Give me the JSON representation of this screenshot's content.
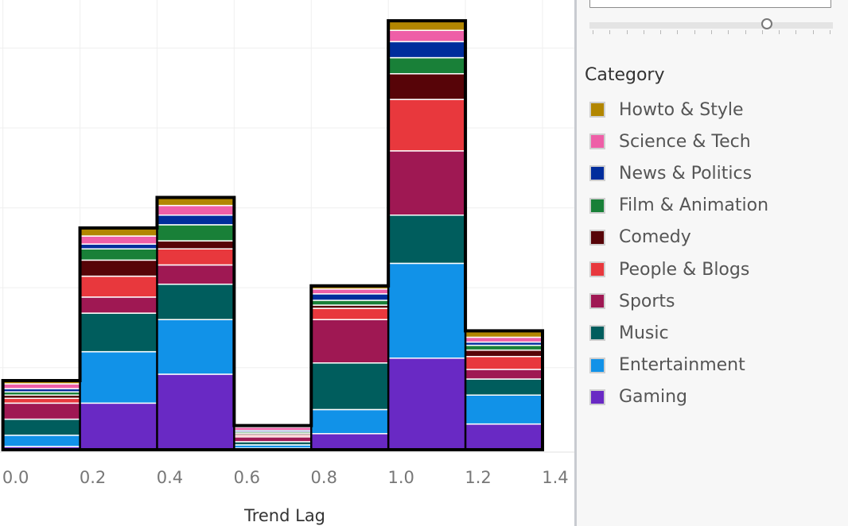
{
  "chart_data": {
    "type": "bar",
    "stacked": true,
    "xlabel": "Trend Lag",
    "ylabel": "",
    "x_ticks": [
      "0.0",
      "0.2",
      "0.4",
      "0.6",
      "0.8",
      "1.0",
      "1.2",
      "1.4"
    ],
    "bins": [
      {
        "from": 0.0,
        "to": 0.2
      },
      {
        "from": 0.2,
        "to": 0.4
      },
      {
        "from": 0.4,
        "to": 0.6
      },
      {
        "from": 0.6,
        "to": 0.8
      },
      {
        "from": 0.8,
        "to": 1.0
      },
      {
        "from": 1.0,
        "to": 1.2
      },
      {
        "from": 1.2,
        "to": 1.4
      }
    ],
    "ylim": [
      0,
      135
    ],
    "grid": true,
    "legend_position": "right",
    "series": [
      {
        "name": "Gaming",
        "color": "#6929c4",
        "values": [
          1,
          14.5,
          23.5,
          0.5,
          5,
          28.5,
          8
        ]
      },
      {
        "name": "Entertainment",
        "color": "#1192e8",
        "values": [
          3.5,
          16,
          17,
          1,
          7.5,
          29.5,
          9
        ]
      },
      {
        "name": "Music",
        "color": "#005d5d",
        "values": [
          5,
          12,
          11,
          1,
          14.5,
          15,
          5
        ]
      },
      {
        "name": "Sports",
        "color": "#9f1853",
        "values": [
          5,
          5,
          6,
          1.5,
          13.5,
          20,
          3
        ]
      },
      {
        "name": "People & Blogs",
        "color": "#e8383d",
        "values": [
          1.5,
          6.5,
          5,
          0.5,
          3.5,
          16,
          4
        ]
      },
      {
        "name": "Comedy",
        "color": "#570408",
        "values": [
          1,
          5,
          2.5,
          0.5,
          1,
          8,
          2
        ]
      },
      {
        "name": "Film & Animation",
        "color": "#198038",
        "values": [
          1,
          3.5,
          5,
          0.5,
          1.5,
          5,
          1.5
        ]
      },
      {
        "name": "News & Politics",
        "color": "#002d9c",
        "values": [
          1,
          1.5,
          3,
          0.5,
          2,
          5,
          1
        ]
      },
      {
        "name": "Science & Tech",
        "color": "#ee5fa7",
        "values": [
          1.5,
          2.5,
          3,
          1,
          1.5,
          3.5,
          1.5
        ]
      },
      {
        "name": "Howto & Style",
        "color": "#b28600",
        "values": [
          1,
          2.5,
          2.5,
          0.5,
          1,
          3,
          2
        ]
      }
    ]
  },
  "legend": {
    "title": "Category",
    "items": [
      {
        "label": "Howto & Style",
        "color": "#b28600"
      },
      {
        "label": "Science & Tech",
        "color": "#ee5fa7"
      },
      {
        "label": "News & Politics",
        "color": "#002d9c"
      },
      {
        "label": "Film & Animation",
        "color": "#198038"
      },
      {
        "label": "Comedy",
        "color": "#570408"
      },
      {
        "label": "People & Blogs",
        "color": "#e8383d"
      },
      {
        "label": "Sports",
        "color": "#9f1853"
      },
      {
        "label": "Music",
        "color": "#005d5d"
      },
      {
        "label": "Entertainment",
        "color": "#1192e8"
      },
      {
        "label": "Gaming",
        "color": "#6929c4"
      }
    ]
  },
  "slider": {
    "value_fraction": 0.73,
    "tick_count": 15
  }
}
